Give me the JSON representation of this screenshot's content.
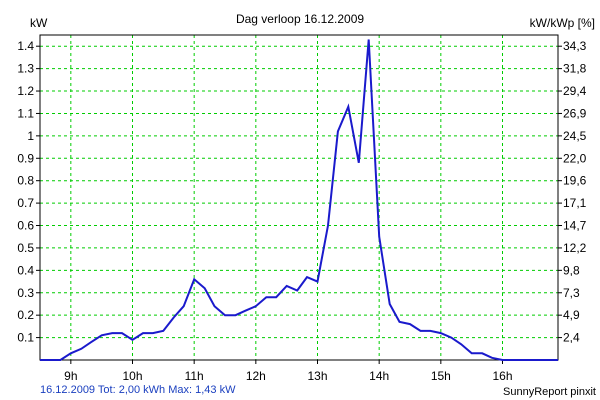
{
  "chart_data": {
    "type": "line",
    "title": "Dag  verloop 16.12.2009",
    "ylabel_left": "kW",
    "ylabel_right": "kW/kWp [%]",
    "x_ticks": [
      "9h",
      "10h",
      "11h",
      "12h",
      "13h",
      "14h",
      "15h",
      "16h"
    ],
    "x_tick_hours": [
      9,
      10,
      11,
      12,
      13,
      14,
      15,
      16
    ],
    "xlim": [
      8.5,
      16.9
    ],
    "y_ticks": [
      "0.1",
      "0.2",
      "0.3",
      "0.4",
      "0.5",
      "0.6",
      "0.7",
      "0.8",
      "0.9",
      "1",
      "1.1",
      "1.2",
      "1.3",
      "1.4"
    ],
    "y_tick_values": [
      0.1,
      0.2,
      0.3,
      0.4,
      0.5,
      0.6,
      0.7,
      0.8,
      0.9,
      1.0,
      1.1,
      1.2,
      1.3,
      1.4
    ],
    "y_right_ticks": [
      "2,4",
      "4,9",
      "7,3",
      "9,8",
      "12,2",
      "14,7",
      "17,1",
      "19,6",
      "22,0",
      "24,5",
      "26,9",
      "29,4",
      "31,8",
      "34,3"
    ],
    "ylim": [
      0,
      1.45
    ],
    "grid": true,
    "line_color": "#1a1acc",
    "grid_color": "#00cc00",
    "series": [
      {
        "x": [
          8.5,
          8.83,
          9.0,
          9.17,
          9.33,
          9.5,
          9.67,
          9.83,
          10.0,
          10.17,
          10.33,
          10.5,
          10.67,
          10.83,
          11.0,
          11.17,
          11.33,
          11.5,
          11.67,
          11.83,
          12.0,
          12.17,
          12.33,
          12.5,
          12.67,
          12.83,
          13.0,
          13.17,
          13.33,
          13.5,
          13.67,
          13.83,
          14.0,
          14.17,
          14.33,
          14.5,
          14.67,
          14.83,
          15.0,
          15.17,
          15.33,
          15.5,
          15.67,
          15.83,
          16.0,
          16.5,
          16.9
        ],
        "y": [
          0.0,
          0.0,
          0.03,
          0.05,
          0.08,
          0.11,
          0.12,
          0.12,
          0.09,
          0.12,
          0.12,
          0.13,
          0.19,
          0.24,
          0.36,
          0.32,
          0.24,
          0.2,
          0.2,
          0.22,
          0.24,
          0.28,
          0.28,
          0.33,
          0.31,
          0.37,
          0.35,
          0.6,
          1.02,
          1.13,
          0.88,
          1.43,
          0.55,
          0.25,
          0.17,
          0.16,
          0.13,
          0.13,
          0.12,
          0.1,
          0.07,
          0.03,
          0.03,
          0.01,
          0.0,
          0.0,
          0.0
        ]
      }
    ]
  },
  "footer": {
    "left": "16.12.2009 Tot: 2,00 kWh Max: 1,43 kW",
    "right": "SunnyReport pinxit"
  }
}
